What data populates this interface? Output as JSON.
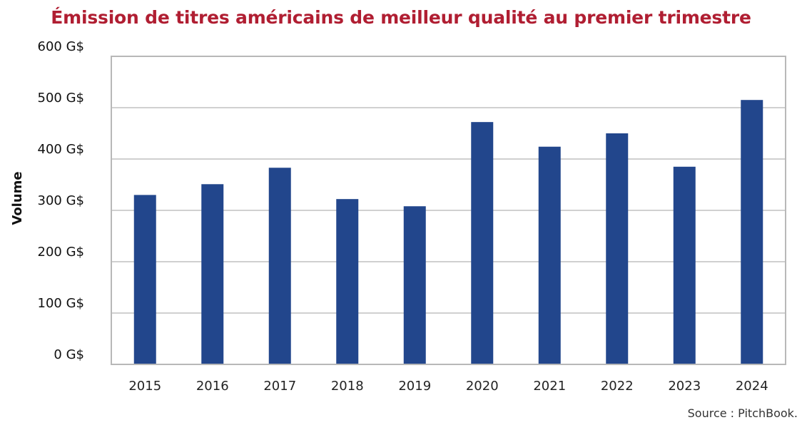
{
  "chart_data": {
    "type": "bar",
    "title": "Émission de titres américains de meilleur qualité au premier trimestre",
    "xlabel": "",
    "ylabel": "Volume",
    "categories": [
      "2015",
      "2016",
      "2017",
      "2018",
      "2019",
      "2020",
      "2021",
      "2022",
      "2023",
      "2024"
    ],
    "values": [
      330,
      351,
      383,
      322,
      308,
      472,
      424,
      450,
      385,
      515
    ],
    "unit": "G$",
    "ylim": [
      0,
      600
    ],
    "yticks": [
      0,
      100,
      200,
      300,
      400,
      500,
      600
    ],
    "ytick_labels": [
      "0 G$",
      "100 G$",
      "200 G$",
      "300 G$",
      "400 G$",
      "500 G$",
      "600 G$"
    ],
    "grid": true,
    "legend": "none",
    "source": "Source : PitchBook.",
    "colors": {
      "bar": "#22468c",
      "title": "#b01e32",
      "grid": "#d0d0d0",
      "frame": "#b8b8b8"
    }
  }
}
